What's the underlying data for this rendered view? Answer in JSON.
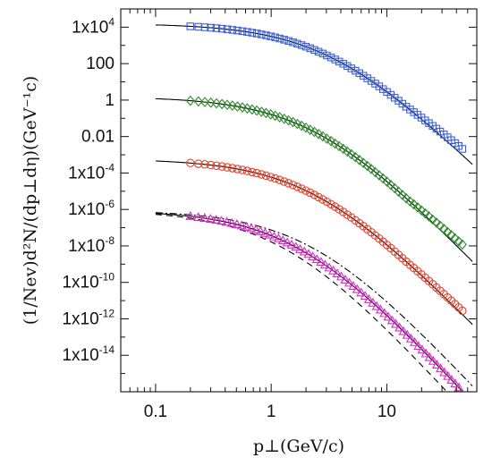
{
  "chart_data": {
    "type": "scatter",
    "title": "",
    "xlabel": "p⊥(GeV/c)",
    "ylabel": "(1/Nev)d²N/(dp⊥dη)(GeV⁻¹c)",
    "xscale": "log",
    "yscale": "log",
    "xlim": [
      0.05,
      60
    ],
    "ylim": [
      1e-16,
      100000.0
    ],
    "x_ticks": [
      {
        "value": 0.1,
        "label": "0.1"
      },
      {
        "value": 1,
        "label": "1"
      },
      {
        "value": 10,
        "label": "10"
      }
    ],
    "y_ticks": [
      {
        "value": 10000.0,
        "base": "1x10",
        "exp": "4"
      },
      {
        "value": 100,
        "base": "100",
        "exp": ""
      },
      {
        "value": 1,
        "base": "1",
        "exp": ""
      },
      {
        "value": 0.01,
        "base": "0.01",
        "exp": ""
      },
      {
        "value": 0.0001,
        "base": "1x10",
        "exp": "-4"
      },
      {
        "value": 1e-06,
        "base": "1x10",
        "exp": "-6"
      },
      {
        "value": 1e-08,
        "base": "1x10",
        "exp": "-8"
      },
      {
        "value": 1e-10,
        "base": "1x10",
        "exp": "-10"
      },
      {
        "value": 1e-12,
        "base": "1x10",
        "exp": "-12"
      },
      {
        "value": 1e-14,
        "base": "1x10",
        "exp": "-14"
      }
    ],
    "grid": false,
    "legend": "none",
    "series": [
      {
        "marker": "square",
        "color": "#3a5fd6",
        "A": 16000.0,
        "p0": 3.3,
        "n": 6.2,
        "x_min": 0.2,
        "x_max": 45,
        "rise_above": 15,
        "rise": 2.2
      },
      {
        "marker": "diamond",
        "color": "#2e8b2e",
        "A": 1.55,
        "p0": 2.45,
        "n": 6.6,
        "x_min": 0.2,
        "x_max": 45,
        "rise_above": 15,
        "rise": 2.4
      },
      {
        "marker": "circle",
        "color": "#e8402a",
        "A": 0.0006,
        "p0": 2.35,
        "n": 6.55,
        "x_min": 0.2,
        "x_max": 45,
        "rise_above": 15,
        "rise": 1.6
      },
      {
        "marker": "triangle",
        "color": "#d52cc4",
        "A": 9e-07,
        "p0": 1.7,
        "n": 6.9,
        "x_min": 0.2,
        "x_max": 42,
        "rise_above": 0,
        "rise": 1.0
      }
    ],
    "fit_curves": [
      {
        "style": "solid",
        "A": 16000.0,
        "p0": 3.3,
        "n": 6.2
      },
      {
        "style": "solid",
        "A": 1.55,
        "p0": 2.45,
        "n": 6.6
      },
      {
        "style": "solid",
        "A": 0.0006,
        "p0": 2.35,
        "n": 6.55
      },
      {
        "style": "solid",
        "A": 9e-07,
        "p0": 1.7,
        "n": 6.9
      },
      {
        "style": "dashed",
        "A": 9e-07,
        "p0": 1.3,
        "n": 7.0
      },
      {
        "style": "dashdot",
        "A": 9e-07,
        "p0": 2.3,
        "n": 6.9
      }
    ]
  }
}
